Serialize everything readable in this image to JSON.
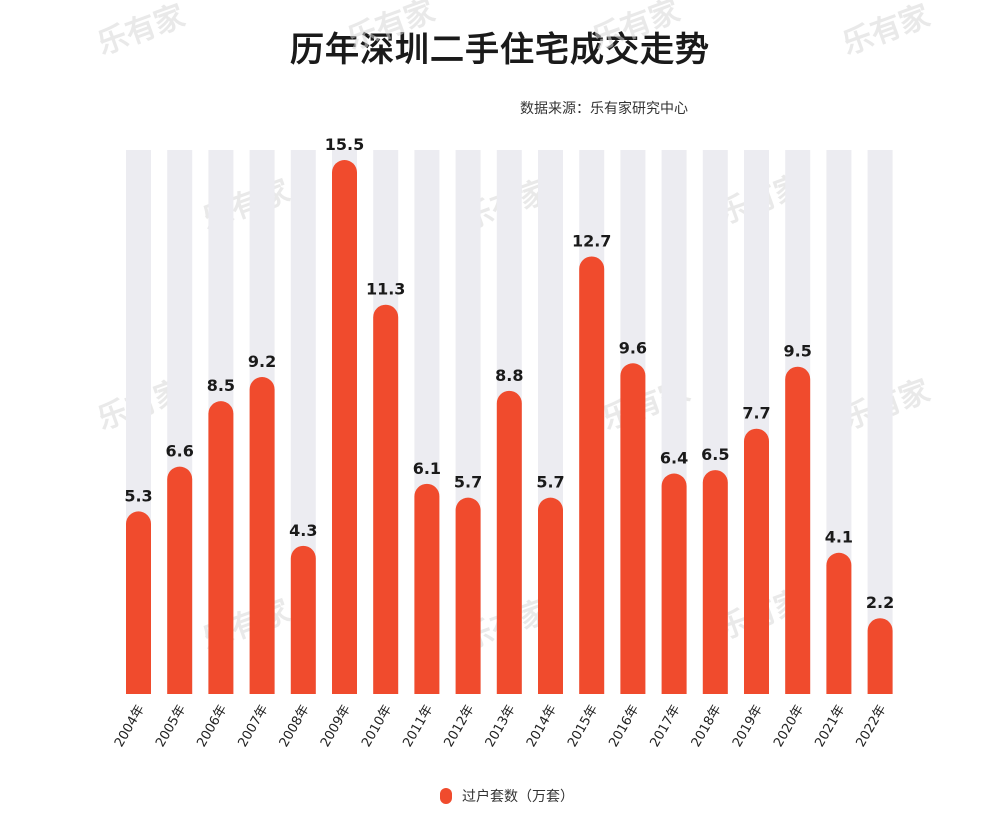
{
  "title": "历年深圳二手住宅成交走势",
  "source": "数据来源：乐有家研究中心",
  "watermark": "乐有家",
  "colors": {
    "bar": "#f04b2d",
    "track": "#ececf1",
    "label": "#1a1a1a"
  },
  "legend": {
    "label": "过户套数（万套）"
  },
  "chart_data": {
    "type": "bar",
    "title": "历年深圳二手住宅成交走势",
    "xlabel": "",
    "ylabel": "",
    "ylim": [
      0,
      15.5
    ],
    "grid": false,
    "legend_position": "bottom",
    "categories": [
      "2004年",
      "2005年",
      "2006年",
      "2007年",
      "2008年",
      "2009年",
      "2010年",
      "2011年",
      "2012年",
      "2013年",
      "2014年",
      "2015年",
      "2016年",
      "2017年",
      "2018年",
      "2019年",
      "2020年",
      "2021年",
      "2022年"
    ],
    "series": [
      {
        "name": "过户套数（万套）",
        "values": [
          5.3,
          6.6,
          8.5,
          9.2,
          4.3,
          15.5,
          11.3,
          6.1,
          5.7,
          8.8,
          5.7,
          12.7,
          9.6,
          6.4,
          6.5,
          7.7,
          9.5,
          4.1,
          2.2
        ]
      }
    ]
  }
}
